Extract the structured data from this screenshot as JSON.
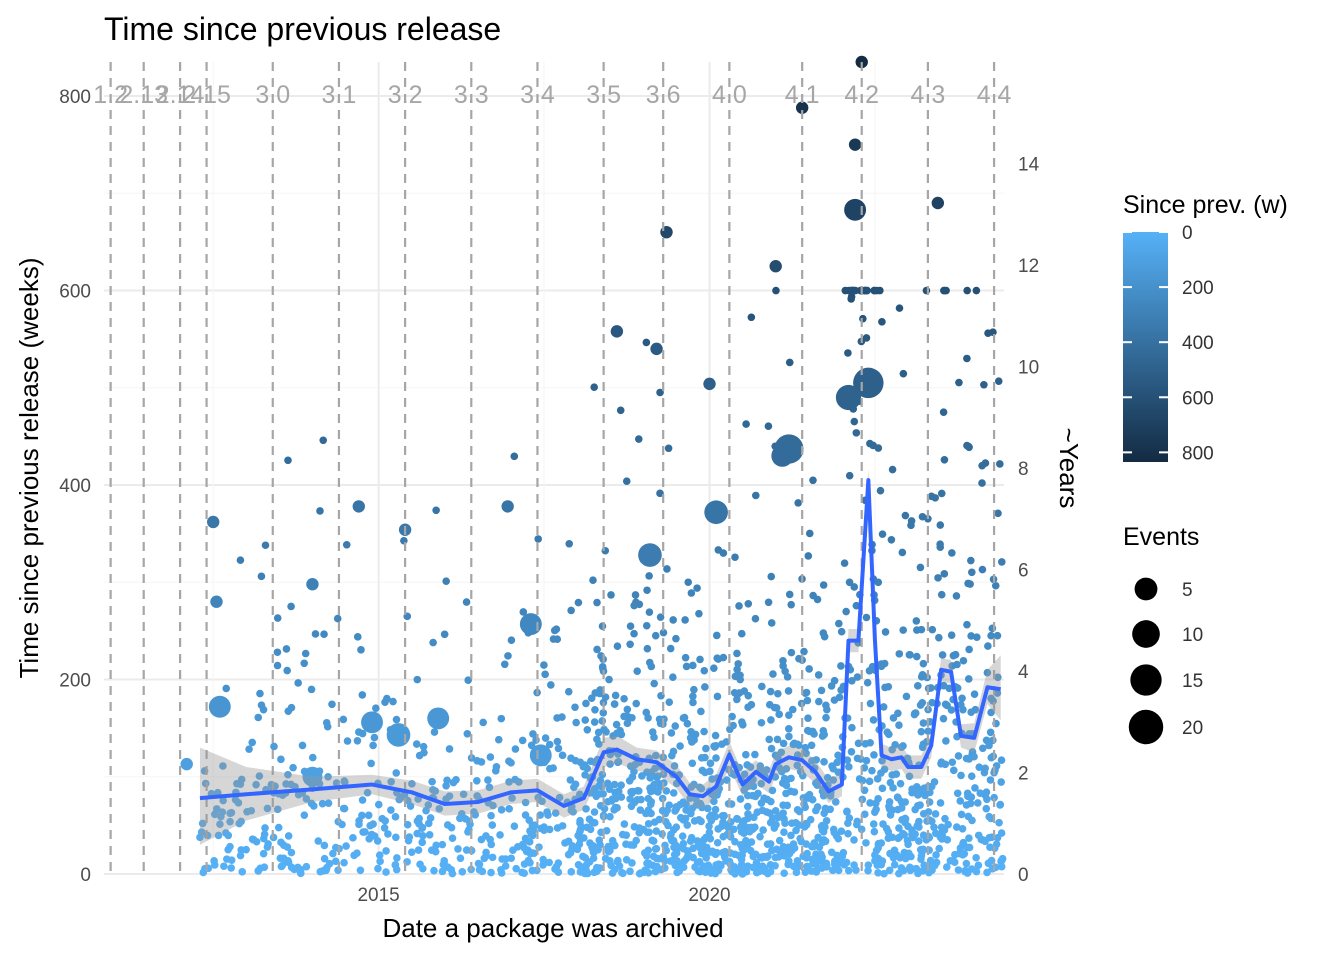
{
  "chart_data": {
    "type": "scatter",
    "title": "Time since previous release",
    "xlabel": "Date a package was archived",
    "ylabel": "Time since previous release (weeks)",
    "y2label": "~Years",
    "xlim": [
      2010.85,
      2024.45
    ],
    "ylim": [
      0,
      835
    ],
    "x_ticks": [
      {
        "value": 2015,
        "label": "2015"
      },
      {
        "value": 2020,
        "label": "2020"
      }
    ],
    "y_ticks": [
      {
        "value": 0,
        "label": "0"
      },
      {
        "value": 200,
        "label": "200"
      },
      {
        "value": 400,
        "label": "400"
      },
      {
        "value": 600,
        "label": "600"
      },
      {
        "value": 800,
        "label": "800"
      }
    ],
    "y2_ticks": [
      {
        "value": 0,
        "label": "0"
      },
      {
        "value": 2,
        "label": "2"
      },
      {
        "value": 4,
        "label": "4"
      },
      {
        "value": 6,
        "label": "6"
      },
      {
        "value": 8,
        "label": "8"
      },
      {
        "value": 10,
        "label": "10"
      },
      {
        "value": 12,
        "label": "12"
      },
      {
        "value": 14,
        "label": "14"
      }
    ],
    "grid": true,
    "legend_position": "right",
    "release_lines": [
      {
        "x": 2010.95,
        "label": "1.2"
      },
      {
        "x": 2011.45,
        "label": "2.13"
      },
      {
        "x": 2012.0,
        "label": "2.14"
      },
      {
        "x": 2012.4,
        "label": "2.15"
      },
      {
        "x": 2013.4,
        "label": "3.0"
      },
      {
        "x": 2014.4,
        "label": "3.1"
      },
      {
        "x": 2015.4,
        "label": "3.2"
      },
      {
        "x": 2016.4,
        "label": "3.3"
      },
      {
        "x": 2017.4,
        "label": "3.4"
      },
      {
        "x": 2018.4,
        "label": "3.5"
      },
      {
        "x": 2019.3,
        "label": "3.6"
      },
      {
        "x": 2020.3,
        "label": "4.0"
      },
      {
        "x": 2021.4,
        "label": "4.1"
      },
      {
        "x": 2022.3,
        "label": "4.2"
      },
      {
        "x": 2023.3,
        "label": "4.3"
      },
      {
        "x": 2024.3,
        "label": "4.4"
      }
    ],
    "smooth_line": {
      "color": "#3366ff",
      "x": [
        2012.3,
        2013.0,
        2014.0,
        2014.9,
        2015.5,
        2016.0,
        2016.5,
        2017.0,
        2017.4,
        2017.8,
        2018.1,
        2018.4,
        2018.6,
        2018.9,
        2019.2,
        2019.5,
        2019.7,
        2019.9,
        2020.1,
        2020.3,
        2020.5,
        2020.7,
        2020.9,
        2021.0,
        2021.2,
        2021.4,
        2021.6,
        2021.8,
        2022.0,
        2022.1,
        2022.25,
        2022.4,
        2022.5,
        2022.6,
        2022.75,
        2022.9,
        2023.0,
        2023.2,
        2023.35,
        2023.5,
        2023.65,
        2023.8,
        2024.0,
        2024.2,
        2024.4
      ],
      "y": [
        78,
        82,
        87,
        92,
        84,
        72,
        74,
        84,
        86,
        70,
        78,
        125,
        128,
        118,
        115,
        100,
        82,
        80,
        90,
        123,
        92,
        105,
        95,
        113,
        120,
        117,
        105,
        85,
        92,
        240,
        240,
        405,
        240,
        122,
        118,
        120,
        110,
        110,
        132,
        210,
        208,
        142,
        140,
        192,
        190
      ],
      "band_upper": [
        130,
        110,
        100,
        102,
        96,
        85,
        86,
        96,
        98,
        82,
        90,
        140,
        142,
        130,
        127,
        112,
        94,
        92,
        102,
        136,
        104,
        117,
        107,
        125,
        132,
        129,
        117,
        97,
        104,
        252,
        252,
        417,
        252,
        134,
        130,
        132,
        122,
        122,
        144,
        222,
        220,
        154,
        155,
        210,
        225
      ],
      "band_lower": [
        30,
        55,
        74,
        82,
        72,
        60,
        62,
        72,
        74,
        58,
        66,
        110,
        114,
        106,
        103,
        88,
        70,
        68,
        78,
        110,
        80,
        93,
        83,
        101,
        108,
        105,
        93,
        73,
        80,
        228,
        228,
        393,
        228,
        110,
        106,
        108,
        98,
        98,
        120,
        198,
        196,
        130,
        125,
        175,
        158
      ]
    },
    "legend_color": {
      "title": "Since prev. (w)",
      "labels": [
        "0",
        "200",
        "400",
        "600",
        "800"
      ],
      "colors": [
        "#56b1f7",
        "#132b43"
      ]
    },
    "legend_size": {
      "title": "Events",
      "labels": [
        "5",
        "10",
        "15",
        "20"
      ]
    },
    "highlight_points": [
      {
        "x": 2022.3,
        "y": 835,
        "events": 1
      },
      {
        "x": 2021.4,
        "y": 788,
        "events": 1
      },
      {
        "x": 2022.2,
        "y": 750,
        "events": 1
      },
      {
        "x": 2023.45,
        "y": 690,
        "events": 1
      },
      {
        "x": 2022.2,
        "y": 683,
        "events": 8
      },
      {
        "x": 2019.35,
        "y": 660,
        "events": 1
      },
      {
        "x": 2021.0,
        "y": 625,
        "events": 1
      },
      {
        "x": 2018.6,
        "y": 558,
        "events": 1
      },
      {
        "x": 2019.2,
        "y": 540,
        "events": 1
      },
      {
        "x": 2020.0,
        "y": 504,
        "events": 1
      },
      {
        "x": 2022.4,
        "y": 505,
        "events": 20
      },
      {
        "x": 2022.1,
        "y": 490,
        "events": 12
      },
      {
        "x": 2021.2,
        "y": 437,
        "events": 18
      },
      {
        "x": 2021.1,
        "y": 430,
        "events": 8
      },
      {
        "x": 2020.1,
        "y": 372,
        "events": 10
      },
      {
        "x": 2016.95,
        "y": 378,
        "events": 1
      },
      {
        "x": 2014.7,
        "y": 378,
        "events": 1
      },
      {
        "x": 2012.5,
        "y": 362,
        "events": 1
      },
      {
        "x": 2015.4,
        "y": 354,
        "events": 1
      },
      {
        "x": 2019.1,
        "y": 328,
        "events": 10
      },
      {
        "x": 2014.0,
        "y": 298,
        "events": 1
      },
      {
        "x": 2012.55,
        "y": 280,
        "events": 1
      },
      {
        "x": 2017.3,
        "y": 257,
        "events": 8
      },
      {
        "x": 2012.6,
        "y": 172,
        "events": 8
      },
      {
        "x": 2015.9,
        "y": 160,
        "events": 8
      },
      {
        "x": 2015.3,
        "y": 143,
        "events": 10
      },
      {
        "x": 2014.9,
        "y": 156,
        "events": 8
      },
      {
        "x": 2012.1,
        "y": 113,
        "events": 1
      },
      {
        "x": 2014.0,
        "y": 100,
        "events": 6
      },
      {
        "x": 2017.45,
        "y": 122,
        "events": 8
      }
    ]
  }
}
